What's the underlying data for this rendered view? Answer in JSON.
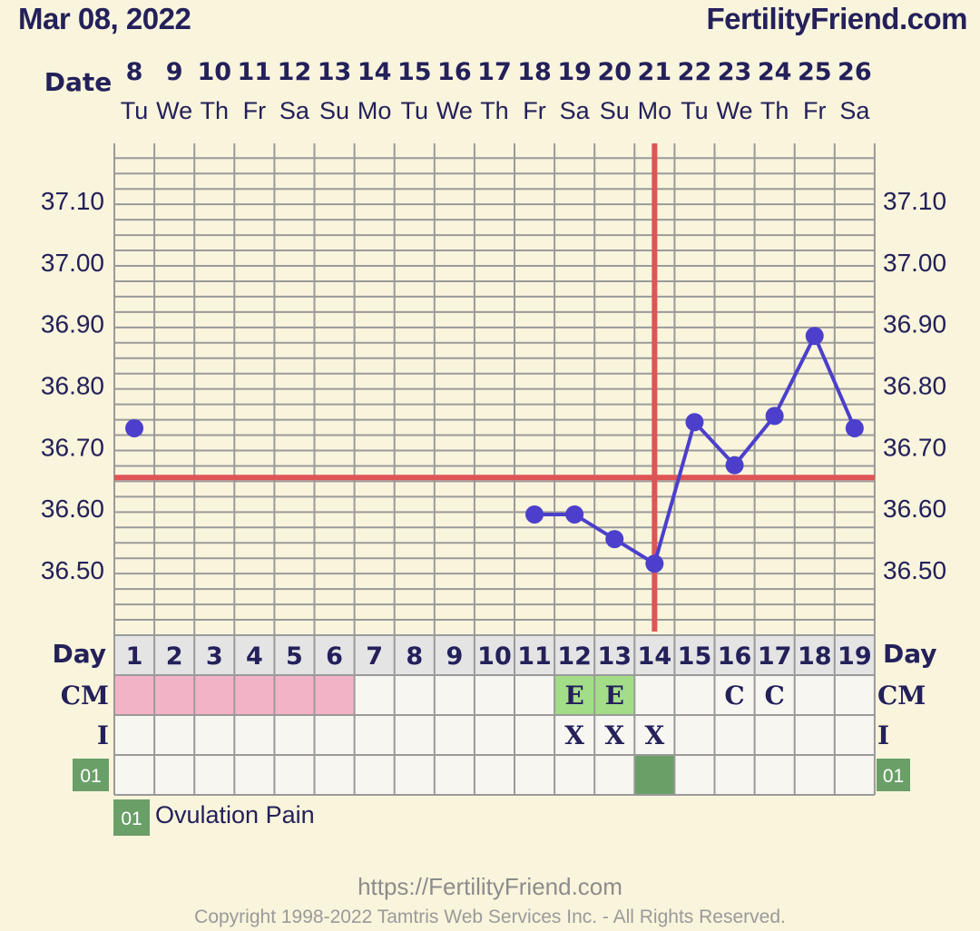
{
  "header": {
    "date": "Mar 08, 2022",
    "brand": "FertilityFriend.com",
    "date_label": "Date"
  },
  "chart_data": {
    "type": "line",
    "title": "",
    "ylabel": "",
    "xlabel": "",
    "ylim": [
      36.42,
      37.19
    ],
    "y_ticks": [
      "37.10",
      "37.00",
      "36.90",
      "36.80",
      "36.70",
      "36.60",
      "36.50"
    ],
    "dates": [
      "8",
      "9",
      "10",
      "11",
      "12",
      "13",
      "14",
      "15",
      "16",
      "17",
      "18",
      "19",
      "20",
      "21",
      "22",
      "23",
      "24",
      "25",
      "26"
    ],
    "weekdays": [
      "Tu",
      "We",
      "Th",
      "Fr",
      "Sa",
      "Su",
      "Mo",
      "Tu",
      "We",
      "Th",
      "Fr",
      "Sa",
      "Su",
      "Mo",
      "Tu",
      "We",
      "Th",
      "Fr",
      "Sa"
    ],
    "cycle_days": [
      "1",
      "2",
      "3",
      "4",
      "5",
      "6",
      "7",
      "8",
      "9",
      "10",
      "11",
      "12",
      "13",
      "14",
      "15",
      "16",
      "17",
      "18",
      "19"
    ],
    "series": [
      {
        "color": "#4b3fcb",
        "values": [
          36.73,
          null,
          null,
          null,
          null,
          null,
          null,
          null,
          null,
          null,
          36.59,
          36.59,
          36.55,
          36.51,
          36.74,
          36.67,
          36.75,
          36.88,
          36.73
        ]
      }
    ],
    "coverline": 36.65,
    "ovulation_day_index": 13,
    "grid": true
  },
  "rows": {
    "day_label": "Day",
    "cm_label": "CM",
    "i_label": "I",
    "custom_label": "01",
    "cm": [
      "",
      "",
      "",
      "",
      "",
      "",
      "",
      "",
      "",
      "",
      "",
      "E",
      "E",
      "",
      "",
      "C",
      "C",
      "",
      ""
    ],
    "cm_fill": [
      "pink",
      "pink",
      "pink",
      "pink",
      "pink",
      "pink",
      "",
      "",
      "",
      "",
      "",
      "green",
      "green",
      "",
      "",
      "",
      "",
      "",
      ""
    ],
    "i": [
      "",
      "",
      "",
      "",
      "",
      "",
      "",
      "",
      "",
      "",
      "",
      "X",
      "X",
      "X",
      "",
      "",
      "",
      "",
      ""
    ],
    "custom_fill": [
      "",
      "",
      "",
      "",
      "",
      "",
      "",
      "",
      "",
      "",
      "",
      "",
      "",
      "dark",
      "",
      "",
      "",
      "",
      ""
    ]
  },
  "legend": {
    "badge": "01",
    "text": "Ovulation Pain"
  },
  "colors": {
    "background": "#f9f4dc",
    "grid": "#9a9a9a",
    "red_line": "#dd5555",
    "point": "#4b3fcb",
    "pink": "#f2b3c6",
    "light_green": "#a3dd88",
    "dark_green": "#6a9f68",
    "badge": "#6a9f68"
  },
  "footer": {
    "url": "https://FertilityFriend.com",
    "copyright": "Copyright 1998-2022 Tamtris Web Services Inc. - All Rights Reserved."
  }
}
